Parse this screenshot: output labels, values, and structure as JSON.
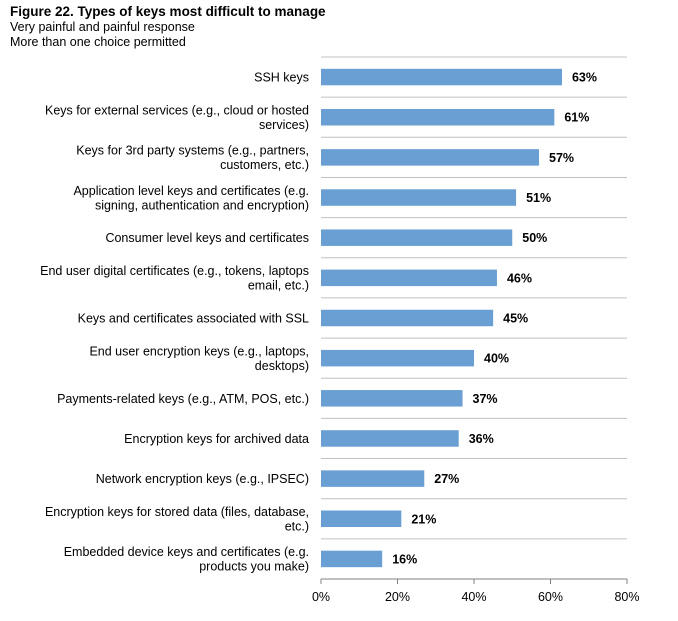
{
  "figure": {
    "title": "Figure 22.  Types of keys most difficult to manage",
    "subtitle_1": "Very painful and painful response",
    "subtitle_2": "More than one choice permitted"
  },
  "colors": {
    "bar": "#6a9fd4",
    "grid": "#c0c0c0",
    "axis": "#808080"
  },
  "chart_data": {
    "type": "bar",
    "orientation": "horizontal",
    "title": "Figure 22.  Types of keys most difficult to manage",
    "subtitle": [
      "Very painful and painful response",
      "More than one choice permitted"
    ],
    "categories": [
      [
        "SSH keys"
      ],
      [
        "Keys for external services (e.g., cloud or hosted",
        "services)"
      ],
      [
        "Keys for 3rd party systems (e.g., partners,",
        "customers, etc.)"
      ],
      [
        "Application level keys and certificates (e.g.",
        "signing, authentication and encryption)"
      ],
      [
        "Consumer level keys and certificates"
      ],
      [
        "End user digital certificates (e.g., tokens, laptops",
        "email, etc.)"
      ],
      [
        "Keys and certificates associated with SSL"
      ],
      [
        "End user encryption keys (e.g., laptops,",
        "desktops)"
      ],
      [
        "Payments-related keys (e.g., ATM, POS, etc.)"
      ],
      [
        "Encryption keys for archived data"
      ],
      [
        "Network encryption keys (e.g., IPSEC)"
      ],
      [
        "Encryption keys for stored data (files, database,",
        "etc.)"
      ],
      [
        "Embedded device keys and certificates (e.g.",
        "products you make)"
      ]
    ],
    "values": [
      63,
      61,
      57,
      51,
      50,
      46,
      45,
      40,
      37,
      36,
      27,
      21,
      16
    ],
    "value_labels": [
      "63%",
      "61%",
      "57%",
      "51%",
      "50%",
      "46%",
      "45%",
      "40%",
      "37%",
      "36%",
      "27%",
      "21%",
      "16%"
    ],
    "xlim": [
      0,
      80
    ],
    "xticks": [
      0,
      20,
      40,
      60,
      80
    ],
    "xtick_labels": [
      "0%",
      "20%",
      "40%",
      "60%",
      "80%"
    ],
    "xlabel": "",
    "ylabel": "",
    "grid": "horizontal separators between categories",
    "legend": "none"
  }
}
